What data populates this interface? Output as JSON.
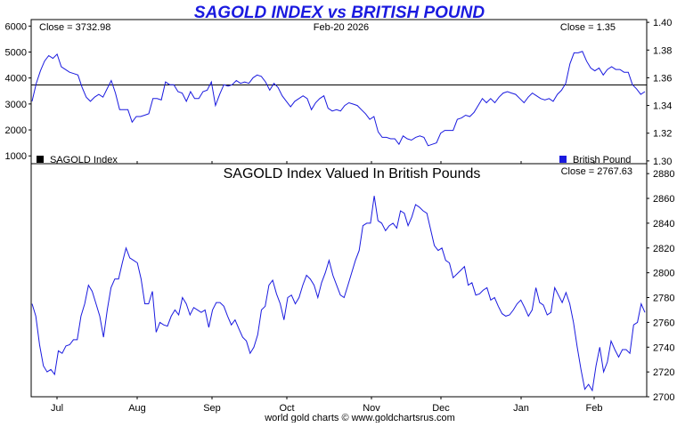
{
  "title": "SAGOLD INDEX vs BRITISH POUND",
  "footer": "world gold charts © www.goldchartsrus.com",
  "colors": {
    "title": "#1a1adf",
    "line": "#1a1adf",
    "background": "#ffffff",
    "axis": "#000000",
    "legend_black": "#000000",
    "legend_blue": "#1a1adf"
  },
  "chart_data": [
    {
      "type": "line",
      "panel": "top",
      "annotations": {
        "close_left": "Close = 3732.98",
        "date": "Feb-20  2026",
        "close_right": "Close = 1.35"
      },
      "legend": [
        {
          "label": "SAGOLD Index",
          "color": "#000000"
        },
        {
          "label": "British Pound",
          "color": "#1a1adf"
        }
      ],
      "x_labels": [
        "Jul",
        "Aug",
        "Sep",
        "Oct",
        "Nov",
        "Dec",
        "Jan",
        "Feb"
      ],
      "y_left": {
        "ticks": [
          1000,
          2000,
          3000,
          4000,
          5000,
          6000
        ],
        "range": [
          700,
          6250
        ]
      },
      "y_right": {
        "ticks": [
          "1.30",
          "1.32",
          "1.34",
          "1.36",
          "1.38",
          "1.40"
        ],
        "range": [
          1.298,
          1.402
        ]
      },
      "sagold_close_level": 3732.98,
      "series": [
        {
          "name": "British Pound",
          "axis": "right",
          "values": [
            1.343,
            1.356,
            1.365,
            1.372,
            1.376,
            1.374,
            1.377,
            1.368,
            1.366,
            1.364,
            1.363,
            1.362,
            1.353,
            1.346,
            1.343,
            1.346,
            1.348,
            1.346,
            1.352,
            1.358,
            1.349,
            1.337,
            1.337,
            1.337,
            1.328,
            1.332,
            1.332,
            1.333,
            1.334,
            1.345,
            1.345,
            1.344,
            1.357,
            1.355,
            1.355,
            1.35,
            1.349,
            1.343,
            1.35,
            1.345,
            1.345,
            1.35,
            1.351,
            1.357,
            1.34,
            1.348,
            1.355,
            1.354,
            1.355,
            1.358,
            1.356,
            1.357,
            1.356,
            1.36,
            1.362,
            1.361,
            1.357,
            1.351,
            1.356,
            1.353,
            1.347,
            1.343,
            1.339,
            1.343,
            1.345,
            1.347,
            1.345,
            1.337,
            1.342,
            1.345,
            1.347,
            1.338,
            1.336,
            1.337,
            1.336,
            1.34,
            1.342,
            1.341,
            1.34,
            1.337,
            1.334,
            1.33,
            1.332,
            1.321,
            1.317,
            1.317,
            1.316,
            1.316,
            1.312,
            1.318,
            1.316,
            1.315,
            1.317,
            1.318,
            1.317,
            1.311,
            1.312,
            1.313,
            1.32,
            1.322,
            1.322,
            1.322,
            1.33,
            1.331,
            1.333,
            1.332,
            1.335,
            1.34,
            1.345,
            1.342,
            1.345,
            1.342,
            1.346,
            1.349,
            1.35,
            1.349,
            1.348,
            1.345,
            1.342,
            1.346,
            1.349,
            1.347,
            1.345,
            1.344,
            1.345,
            1.343,
            1.348,
            1.351,
            1.356,
            1.37,
            1.378,
            1.378,
            1.379,
            1.372,
            1.367,
            1.365,
            1.367,
            1.362,
            1.366,
            1.368,
            1.366,
            1.366,
            1.364,
            1.364,
            1.355,
            1.352,
            1.348,
            1.35
          ]
        }
      ]
    },
    {
      "type": "line",
      "panel": "bottom",
      "title": "SAGOLD Index Valued In British Pounds",
      "annotations": {
        "close_right": "Close = 2767.63"
      },
      "x_labels": [
        "Jul",
        "Aug",
        "Sep",
        "Oct",
        "Nov",
        "Dec",
        "Jan",
        "Feb"
      ],
      "y_right": {
        "ticks": [
          2700,
          2720,
          2740,
          2760,
          2780,
          2800,
          2820,
          2840,
          2860,
          2880
        ],
        "range": [
          2700,
          2888
        ]
      },
      "series": [
        {
          "name": "SAGOLD Index Valued In British Pounds",
          "axis": "right",
          "values": [
            2775,
            2765,
            2742,
            2725,
            2720,
            2722,
            2718,
            2737,
            2735,
            2741,
            2742,
            2746,
            2746,
            2765,
            2775,
            2790,
            2785,
            2775,
            2765,
            2748,
            2770,
            2788,
            2795,
            2795,
            2808,
            2820,
            2812,
            2810,
            2808,
            2795,
            2775,
            2775,
            2785,
            2752,
            2760,
            2758,
            2757,
            2765,
            2770,
            2766,
            2780,
            2775,
            2766,
            2772,
            2770,
            2768,
            2770,
            2756,
            2770,
            2776,
            2776,
            2773,
            2765,
            2758,
            2762,
            2755,
            2748,
            2745,
            2735,
            2740,
            2750,
            2770,
            2773,
            2790,
            2794,
            2783,
            2775,
            2762,
            2780,
            2782,
            2775,
            2780,
            2790,
            2798,
            2795,
            2790,
            2780,
            2792,
            2800,
            2810,
            2798,
            2790,
            2782,
            2780,
            2790,
            2800,
            2810,
            2818,
            2838,
            2840,
            2840,
            2862,
            2842,
            2840,
            2834,
            2838,
            2840,
            2836,
            2850,
            2848,
            2838,
            2845,
            2855,
            2853,
            2850,
            2848,
            2835,
            2822,
            2818,
            2820,
            2810,
            2808,
            2796,
            2799,
            2802,
            2805,
            2790,
            2792,
            2782,
            2783,
            2786,
            2788,
            2778,
            2780,
            2773,
            2767,
            2765,
            2766,
            2770,
            2775,
            2778,
            2772,
            2765,
            2770,
            2788,
            2776,
            2774,
            2766,
            2768,
            2788,
            2782,
            2776,
            2784,
            2775,
            2760,
            2740,
            2722,
            2706,
            2710,
            2705,
            2725,
            2740,
            2720,
            2728,
            2745,
            2738,
            2732,
            2738,
            2738,
            2735,
            2758,
            2760,
            2775,
            2768
          ]
        }
      ]
    }
  ]
}
